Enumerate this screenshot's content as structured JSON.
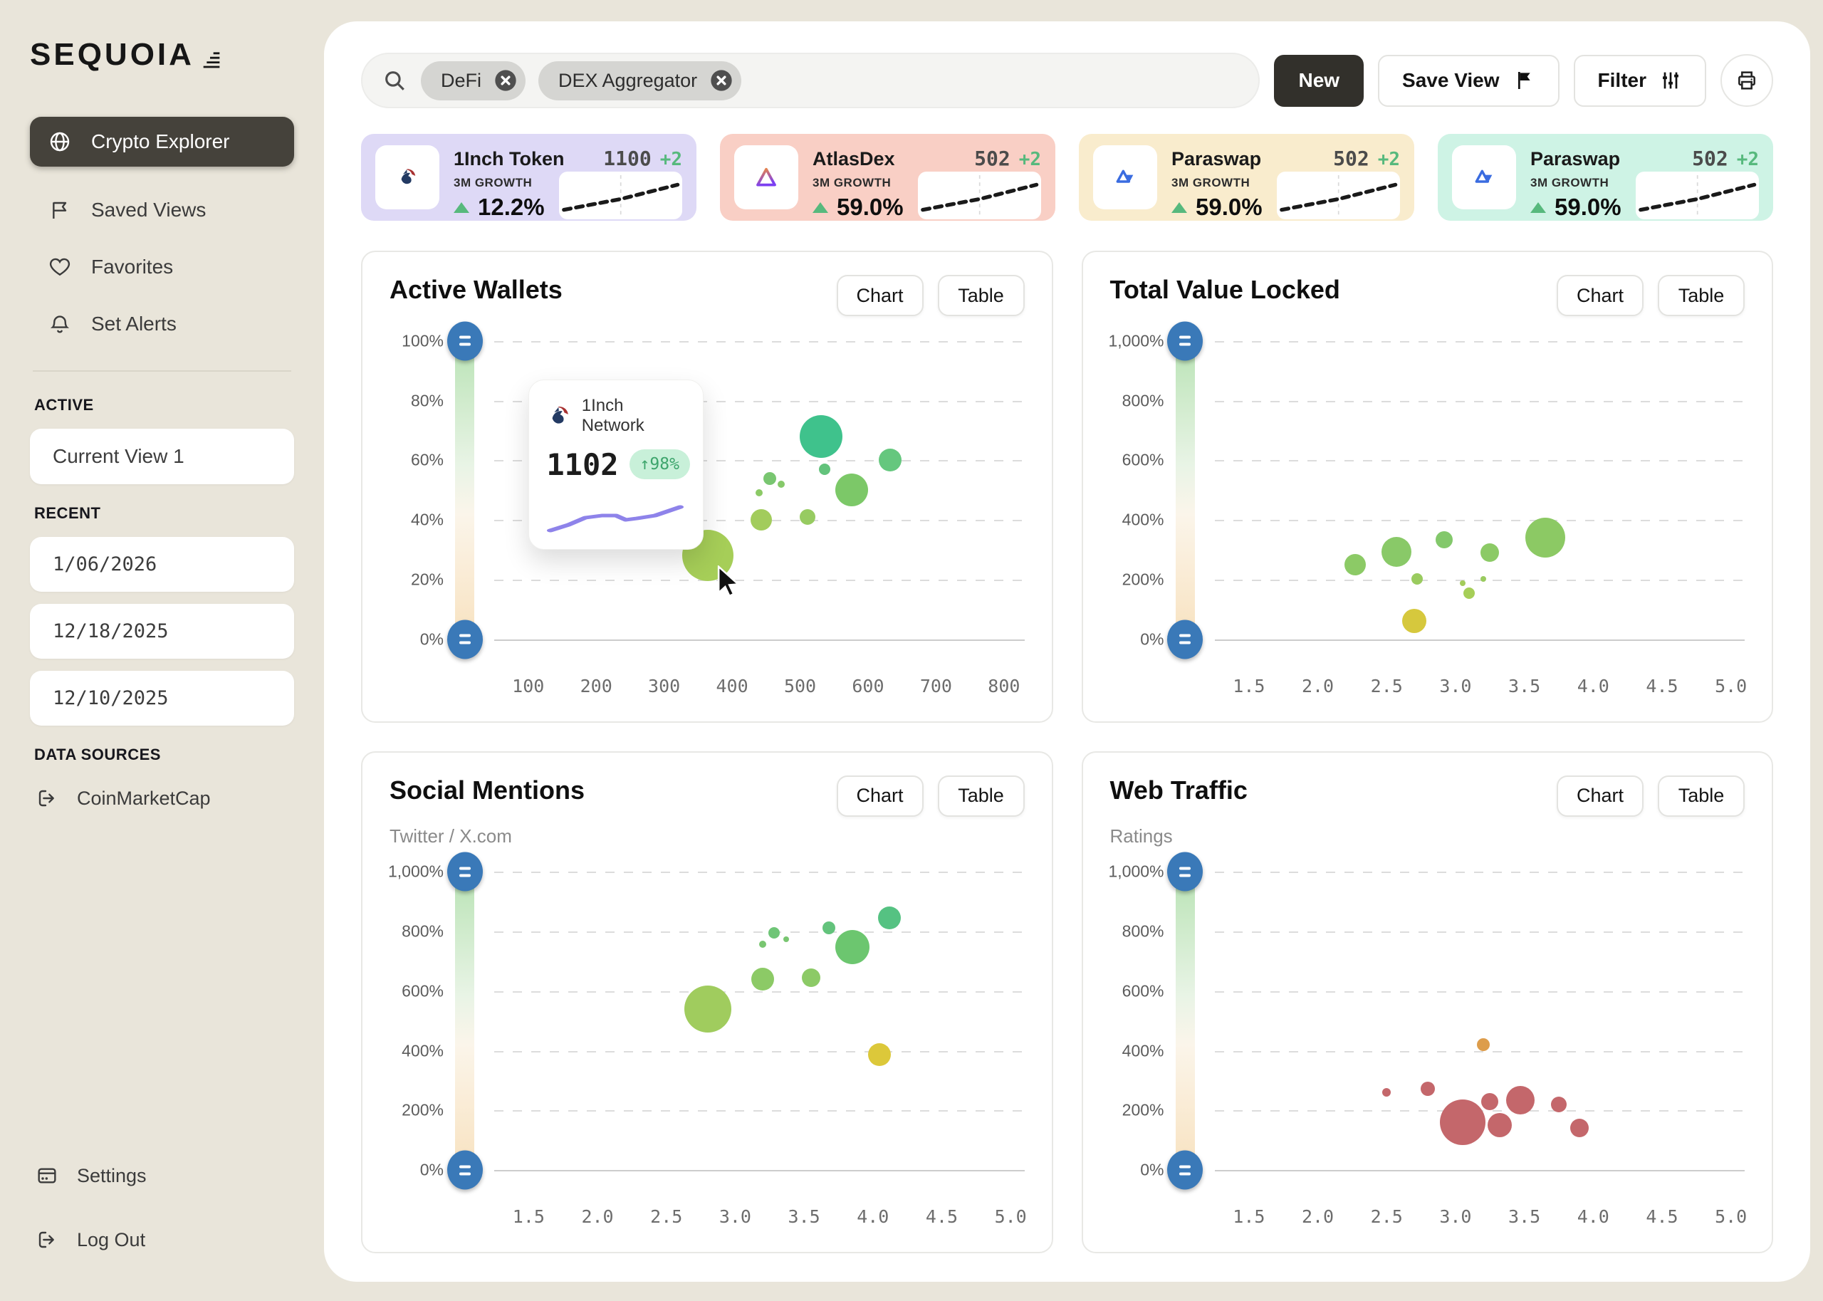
{
  "sidebar": {
    "logo": "SEQUOIA",
    "nav": [
      {
        "label": "Crypto Explorer",
        "icon": "globe",
        "active": true
      },
      {
        "label": "Saved Views",
        "icon": "flag",
        "active": false
      },
      {
        "label": "Favorites",
        "icon": "heart",
        "active": false
      },
      {
        "label": "Set Alerts",
        "icon": "bell",
        "active": false
      }
    ],
    "sections": [
      {
        "title": "ACTIVE",
        "chips": [
          {
            "label": "Current View 1",
            "mono": false
          }
        ]
      },
      {
        "title": "RECENT",
        "chips": [
          {
            "label": "1/06/2026",
            "mono": true
          },
          {
            "label": "12/18/2025",
            "mono": true
          },
          {
            "label": "12/10/2025",
            "mono": true
          }
        ]
      },
      {
        "title": "DATA SOURCES",
        "links": [
          {
            "label": "CoinMarketCap",
            "icon": "export"
          }
        ]
      }
    ],
    "footer": [
      {
        "label": "Settings",
        "icon": "card"
      },
      {
        "label": "Log Out",
        "icon": "logout"
      }
    ]
  },
  "topbar": {
    "search_chips": [
      {
        "label": "DeFi"
      },
      {
        "label": "DEX Aggregator"
      }
    ],
    "buttons": {
      "new": "New",
      "save_view": "Save View",
      "filter": "Filter"
    },
    "print_icon": "printer"
  },
  "stat_cards": [
    {
      "name": "1Inch Token",
      "value": "1100",
      "delta": "+2",
      "growth_label": "3M GROWTH",
      "growth": "12.2%",
      "bg": "#ded9f6",
      "logo": "oneinch"
    },
    {
      "name": "AtlasDex",
      "value": "502",
      "delta": "+2",
      "growth_label": "3M GROWTH",
      "growth": "59.0%",
      "bg": "#f9cfc5",
      "logo": "atlas"
    },
    {
      "name": "Paraswap",
      "value": "502",
      "delta": "+2",
      "growth_label": "3M GROWTH",
      "growth": "59.0%",
      "bg": "#f9eccd",
      "logo": "paraswap"
    },
    {
      "name": "Paraswap",
      "value": "502",
      "delta": "+2",
      "growth_label": "3M GROWTH",
      "growth": "59.0%",
      "bg": "#cef3e5",
      "logo": "paraswap"
    }
  ],
  "tooltip": {
    "title": "1Inch Network",
    "value": "1102",
    "badge": "↑98%",
    "accent": "#8e83ea"
  },
  "chart_data": [
    {
      "type": "scatter",
      "title": "Active Wallets",
      "subtitle": "",
      "buttons": [
        "Chart",
        "Table"
      ],
      "xlim": [
        50,
        830
      ],
      "xticks": [
        100,
        200,
        300,
        400,
        500,
        600,
        700,
        800
      ],
      "x_decimals": 0,
      "ylim": [
        0,
        100
      ],
      "yticks": [
        0,
        20,
        40,
        60,
        80,
        100
      ],
      "ytick_suffix": "%",
      "grid": "dashed-horizontal",
      "has_tooltip": true,
      "points": [
        {
          "x": 364,
          "y": 28,
          "r": 36,
          "color": "#a6ce58"
        },
        {
          "x": 443,
          "y": 40,
          "r": 15,
          "color": "#a2cc5c"
        },
        {
          "x": 511,
          "y": 41,
          "r": 11,
          "color": "#97cb61"
        },
        {
          "x": 455,
          "y": 54,
          "r": 9,
          "color": "#79c671"
        },
        {
          "x": 472,
          "y": 52,
          "r": 5,
          "color": "#86c96a"
        },
        {
          "x": 440,
          "y": 49,
          "r": 5,
          "color": "#8cca66"
        },
        {
          "x": 536,
          "y": 57,
          "r": 8,
          "color": "#63c37c"
        },
        {
          "x": 531,
          "y": 68,
          "r": 30,
          "color": "#3fc28c"
        },
        {
          "x": 576,
          "y": 50,
          "r": 23,
          "color": "#7cc868"
        },
        {
          "x": 633,
          "y": 60,
          "r": 16,
          "color": "#65c77e"
        }
      ]
    },
    {
      "type": "scatter",
      "title": "Total Value Locked",
      "subtitle": "",
      "buttons": [
        "Chart",
        "Table"
      ],
      "xlim": [
        1.25,
        5.1
      ],
      "xticks": [
        1.5,
        2.0,
        2.5,
        3.0,
        3.5,
        4.0,
        4.5,
        5.0
      ],
      "x_decimals": 1,
      "ylim": [
        0,
        1000
      ],
      "yticks": [
        0,
        200,
        400,
        600,
        800,
        1000
      ],
      "ytick_suffix": "%",
      "grid": "dashed-horizontal",
      "has_tooltip": false,
      "points": [
        {
          "x": 2.27,
          "y": 250,
          "r": 15,
          "color": "#8cca66"
        },
        {
          "x": 2.57,
          "y": 292,
          "r": 21,
          "color": "#89c968"
        },
        {
          "x": 2.92,
          "y": 333,
          "r": 12,
          "color": "#83c86b"
        },
        {
          "x": 2.72,
          "y": 203,
          "r": 8,
          "color": "#9acb5f"
        },
        {
          "x": 3.05,
          "y": 187,
          "r": 4,
          "color": "#a3cc5b"
        },
        {
          "x": 3.1,
          "y": 155,
          "r": 8,
          "color": "#a6ce58"
        },
        {
          "x": 3.2,
          "y": 203,
          "r": 4,
          "color": "#9acb5f"
        },
        {
          "x": 3.25,
          "y": 290,
          "r": 13,
          "color": "#8cca66"
        },
        {
          "x": 3.65,
          "y": 340,
          "r": 28,
          "color": "#8cc964"
        },
        {
          "x": 2.7,
          "y": 62,
          "r": 17,
          "color": "#d6c83d"
        }
      ]
    },
    {
      "type": "scatter",
      "title": "Social Mentions",
      "subtitle": "Twitter / X.com",
      "buttons": [
        "Chart",
        "Table"
      ],
      "xlim": [
        1.25,
        5.1
      ],
      "xticks": [
        1.5,
        2.0,
        2.5,
        3.0,
        3.5,
        4.0,
        4.5,
        5.0
      ],
      "x_decimals": 1,
      "ylim": [
        0,
        1000
      ],
      "yticks": [
        0,
        200,
        400,
        600,
        800,
        1000
      ],
      "ytick_suffix": "%",
      "grid": "dashed-horizontal",
      "has_tooltip": false,
      "points": [
        {
          "x": 2.8,
          "y": 540,
          "r": 33,
          "color": "#a0cc5e"
        },
        {
          "x": 3.2,
          "y": 640,
          "r": 16,
          "color": "#8cca66"
        },
        {
          "x": 3.55,
          "y": 645,
          "r": 13,
          "color": "#8cca66"
        },
        {
          "x": 3.2,
          "y": 757,
          "r": 5,
          "color": "#79c671"
        },
        {
          "x": 3.28,
          "y": 795,
          "r": 8,
          "color": "#6fc577"
        },
        {
          "x": 3.37,
          "y": 775,
          "r": 4,
          "color": "#79c671"
        },
        {
          "x": 3.68,
          "y": 812,
          "r": 9,
          "color": "#63c37c"
        },
        {
          "x": 3.85,
          "y": 748,
          "r": 24,
          "color": "#6cc66f"
        },
        {
          "x": 4.12,
          "y": 845,
          "r": 16,
          "color": "#55c282"
        },
        {
          "x": 4.05,
          "y": 388,
          "r": 16,
          "color": "#dcc83a"
        }
      ]
    },
    {
      "type": "scatter",
      "title": "Web Traffic",
      "subtitle": "Ratings",
      "buttons": [
        "Chart",
        "Table"
      ],
      "xlim": [
        1.25,
        5.1
      ],
      "xticks": [
        1.5,
        2.0,
        2.5,
        3.0,
        3.5,
        4.0,
        4.5,
        5.0
      ],
      "x_decimals": 1,
      "ylim": [
        0,
        1000
      ],
      "yticks": [
        0,
        200,
        400,
        600,
        800,
        1000
      ],
      "ytick_suffix": "%",
      "grid": "dashed-horizontal",
      "has_tooltip": false,
      "points": [
        {
          "x": 2.5,
          "y": 260,
          "r": 6,
          "color": "#c4676b"
        },
        {
          "x": 2.8,
          "y": 272,
          "r": 10,
          "color": "#c4676b"
        },
        {
          "x": 3.05,
          "y": 160,
          "r": 32,
          "color": "#c4676b"
        },
        {
          "x": 3.25,
          "y": 230,
          "r": 12,
          "color": "#c4676b"
        },
        {
          "x": 3.32,
          "y": 150,
          "r": 17,
          "color": "#c4676b"
        },
        {
          "x": 3.47,
          "y": 235,
          "r": 20,
          "color": "#c4676b"
        },
        {
          "x": 3.75,
          "y": 220,
          "r": 11,
          "color": "#c4676b"
        },
        {
          "x": 3.9,
          "y": 142,
          "r": 13,
          "color": "#c4676b"
        },
        {
          "x": 3.2,
          "y": 420,
          "r": 9,
          "color": "#dd9d4b"
        }
      ]
    }
  ]
}
